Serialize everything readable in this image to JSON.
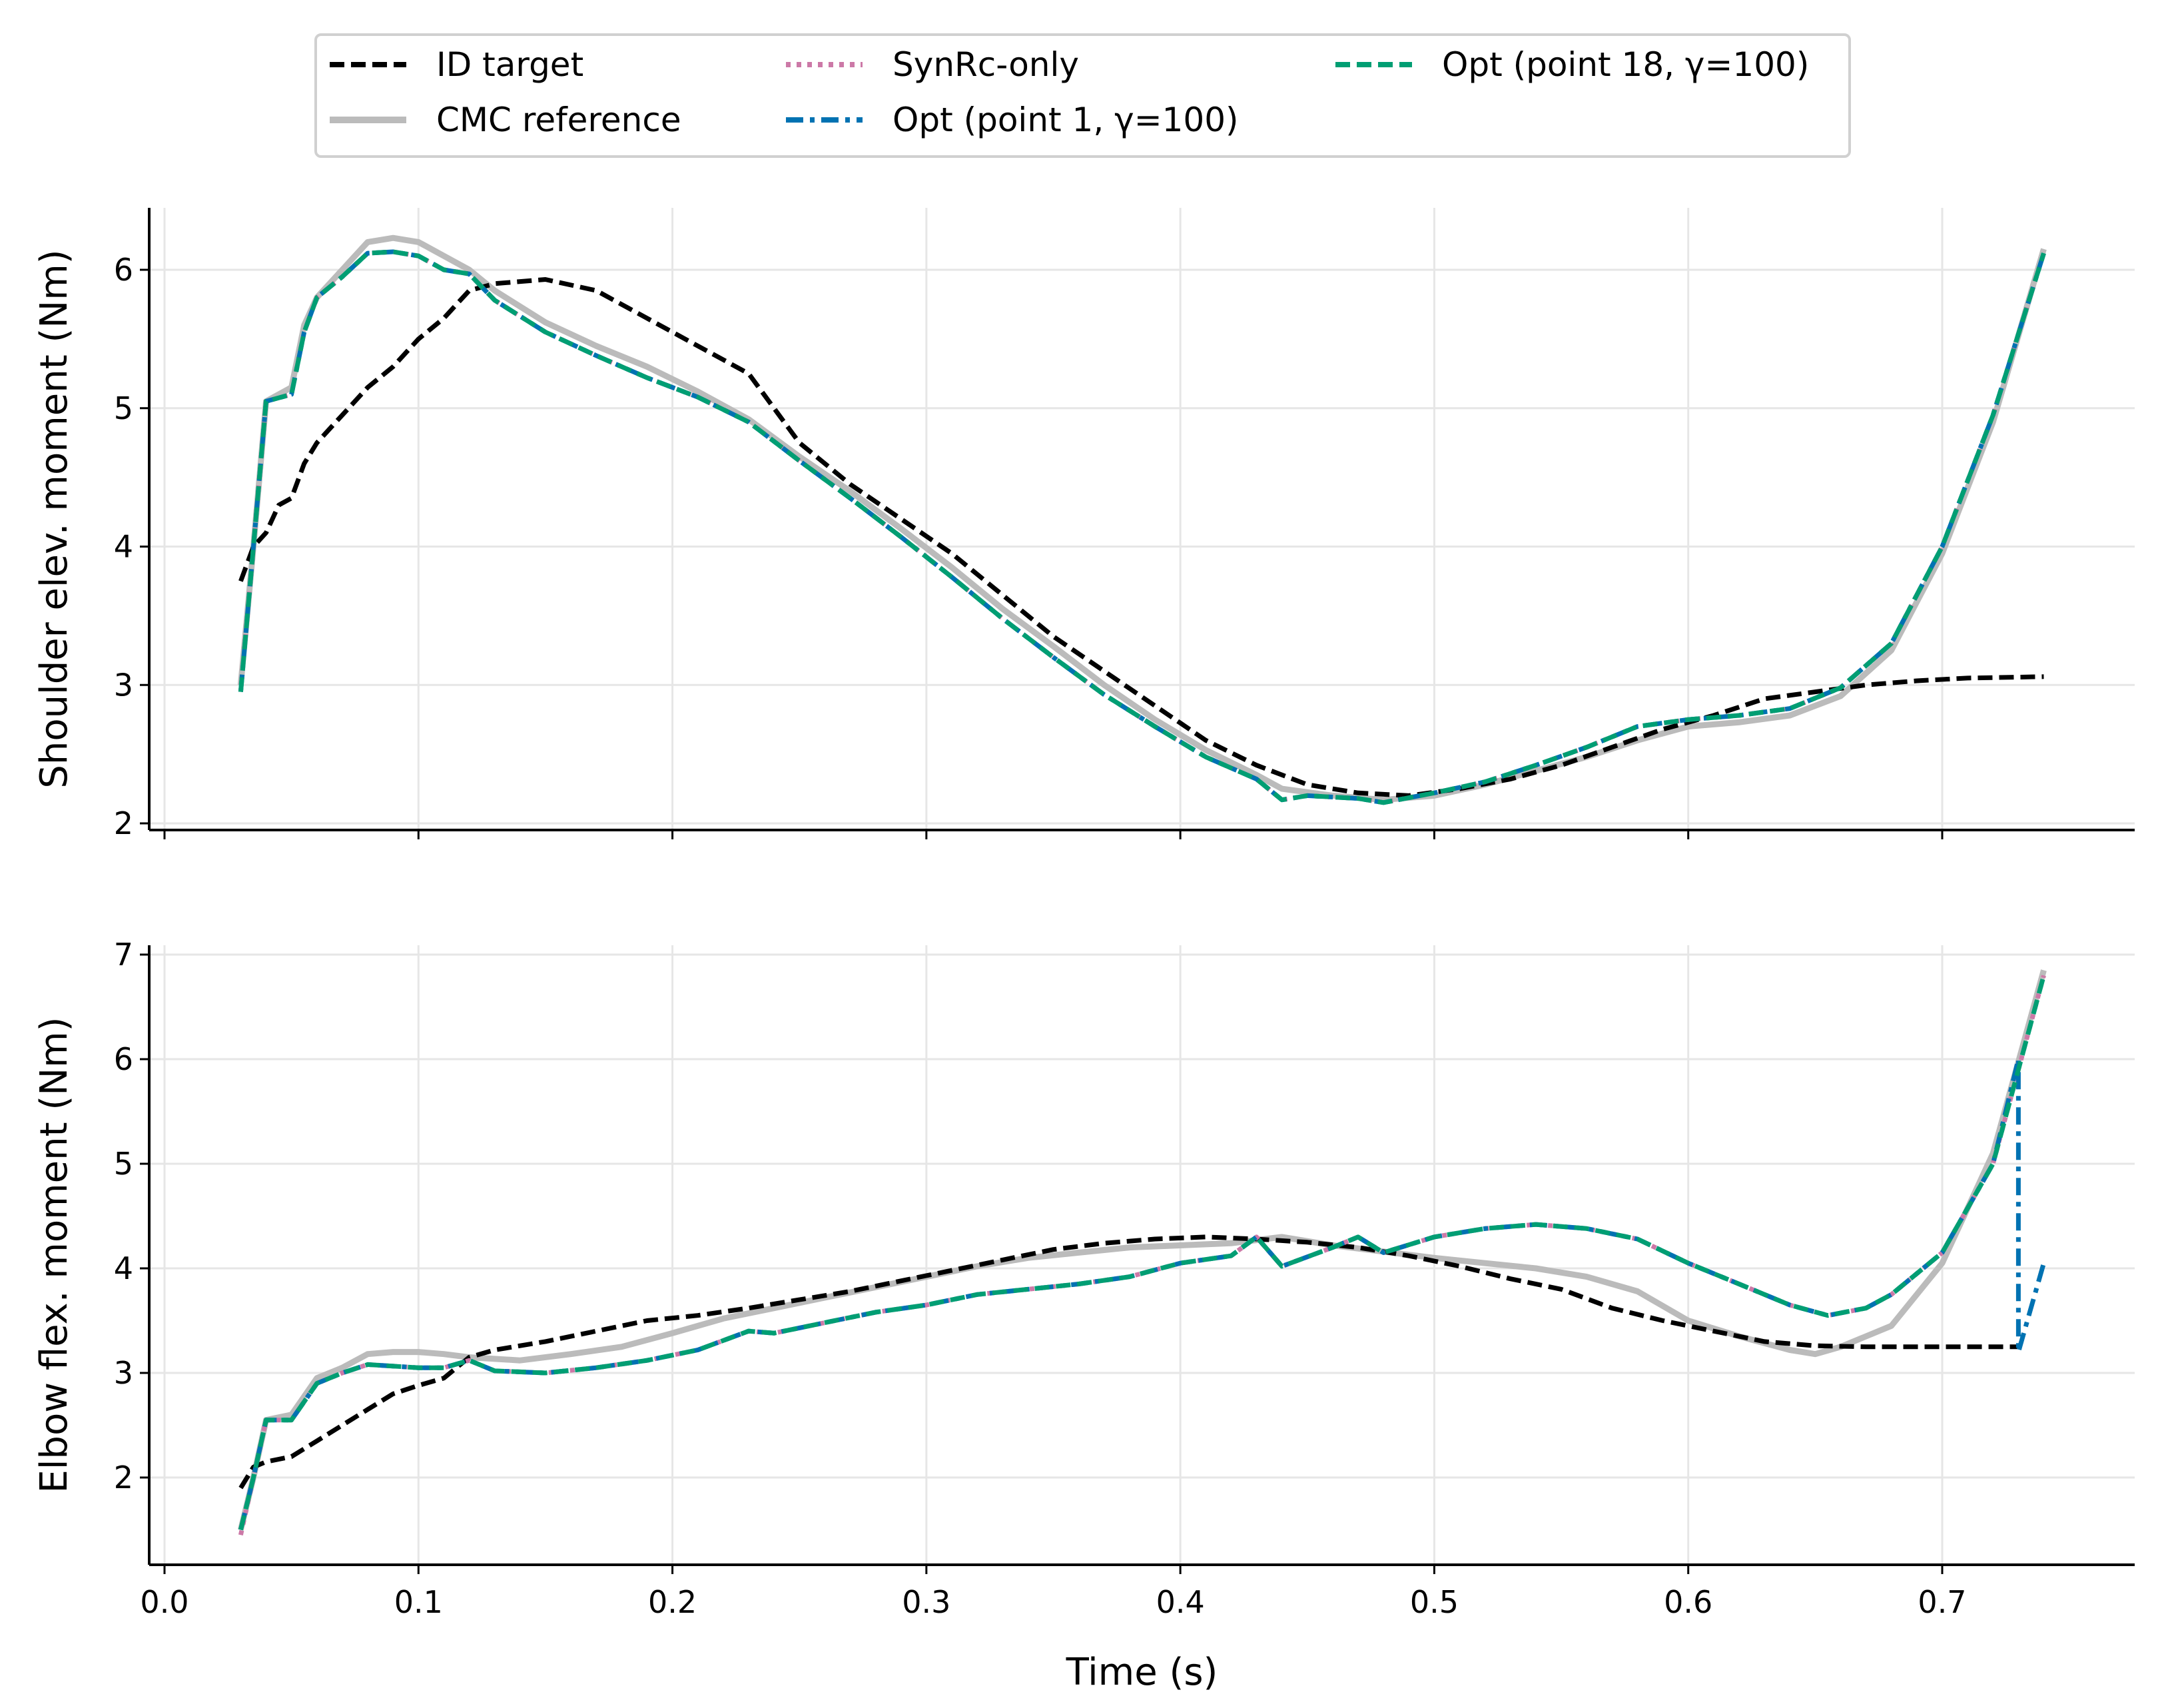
{
  "chart_data": [
    {
      "type": "line",
      "ylabel": "Shoulder elev. moment (Nm)",
      "xlim": [
        -0.005,
        0.775
      ],
      "ylim": [
        1.95,
        6.45
      ],
      "xticks": [
        "0.0",
        "0.1",
        "0.2",
        "0.3",
        "0.4",
        "0.5",
        "0.6",
        "0.7"
      ],
      "xticks_labeled": false,
      "yticks": [
        2,
        3,
        4,
        5,
        6
      ],
      "grid": true,
      "series": [
        {
          "name": "CMC reference",
          "color": "#bbbbbb",
          "style": "solid",
          "x": [
            0.03,
            0.035,
            0.04,
            0.05,
            0.055,
            0.06,
            0.07,
            0.08,
            0.09,
            0.1,
            0.11,
            0.12,
            0.13,
            0.15,
            0.17,
            0.19,
            0.21,
            0.23,
            0.25,
            0.27,
            0.29,
            0.31,
            0.33,
            0.35,
            0.37,
            0.39,
            0.41,
            0.43,
            0.44,
            0.46,
            0.48,
            0.5,
            0.52,
            0.54,
            0.56,
            0.58,
            0.6,
            0.62,
            0.64,
            0.66,
            0.68,
            0.7,
            0.72,
            0.74
          ],
          "y": [
            3.0,
            4.0,
            5.05,
            5.15,
            5.6,
            5.8,
            6.0,
            6.2,
            6.23,
            6.2,
            6.1,
            6.0,
            5.85,
            5.62,
            5.45,
            5.3,
            5.12,
            4.92,
            4.65,
            4.4,
            4.13,
            3.85,
            3.55,
            3.28,
            3.0,
            2.75,
            2.53,
            2.35,
            2.25,
            2.2,
            2.17,
            2.2,
            2.28,
            2.38,
            2.48,
            2.6,
            2.7,
            2.73,
            2.78,
            2.92,
            3.25,
            3.95,
            4.9,
            6.15
          ]
        },
        {
          "name": "ID target",
          "color": "#000000",
          "style": "dashed",
          "x": [
            0.03,
            0.035,
            0.04,
            0.045,
            0.05,
            0.055,
            0.06,
            0.07,
            0.08,
            0.09,
            0.1,
            0.11,
            0.12,
            0.13,
            0.15,
            0.17,
            0.19,
            0.21,
            0.23,
            0.24,
            0.25,
            0.27,
            0.29,
            0.31,
            0.33,
            0.35,
            0.37,
            0.39,
            0.41,
            0.43,
            0.45,
            0.47,
            0.49,
            0.51,
            0.53,
            0.55,
            0.57,
            0.59,
            0.61,
            0.63,
            0.65,
            0.67,
            0.69,
            0.71,
            0.74
          ],
          "y": [
            3.75,
            4.0,
            4.1,
            4.3,
            4.35,
            4.6,
            4.75,
            4.95,
            5.15,
            5.3,
            5.5,
            5.65,
            5.85,
            5.9,
            5.93,
            5.85,
            5.65,
            5.45,
            5.25,
            5.0,
            4.75,
            4.45,
            4.2,
            3.95,
            3.65,
            3.35,
            3.1,
            2.85,
            2.6,
            2.42,
            2.28,
            2.22,
            2.2,
            2.25,
            2.32,
            2.42,
            2.55,
            2.68,
            2.78,
            2.9,
            2.95,
            3.0,
            3.03,
            3.05,
            3.06
          ]
        },
        {
          "name": "SynRc-only",
          "color": "#cc79a7",
          "style": "dotted",
          "x": [
            0.03,
            0.035,
            0.04,
            0.05,
            0.055,
            0.06,
            0.07,
            0.08,
            0.09,
            0.1,
            0.11,
            0.12,
            0.13,
            0.15,
            0.17,
            0.19,
            0.21,
            0.23,
            0.25,
            0.27,
            0.29,
            0.31,
            0.33,
            0.35,
            0.37,
            0.39,
            0.41,
            0.43,
            0.44,
            0.45,
            0.47,
            0.48,
            0.5,
            0.52,
            0.54,
            0.56,
            0.58,
            0.6,
            0.62,
            0.64,
            0.66,
            0.68,
            0.7,
            0.72,
            0.74
          ],
          "y": [
            2.95,
            4.0,
            5.05,
            5.1,
            5.55,
            5.8,
            5.95,
            6.12,
            6.13,
            6.1,
            6.0,
            5.97,
            5.78,
            5.55,
            5.38,
            5.22,
            5.08,
            4.9,
            4.62,
            4.35,
            4.07,
            3.78,
            3.48,
            3.2,
            2.93,
            2.7,
            2.48,
            2.32,
            2.17,
            2.2,
            2.18,
            2.15,
            2.22,
            2.3,
            2.42,
            2.55,
            2.7,
            2.75,
            2.78,
            2.83,
            2.98,
            3.3,
            4.0,
            4.95,
            6.12
          ]
        },
        {
          "name": "Opt (point 1, γ=100)",
          "color": "#0072b2",
          "style": "dashdot",
          "x": [
            0.03,
            0.035,
            0.04,
            0.05,
            0.055,
            0.06,
            0.07,
            0.08,
            0.09,
            0.1,
            0.11,
            0.12,
            0.13,
            0.15,
            0.17,
            0.19,
            0.21,
            0.23,
            0.25,
            0.27,
            0.29,
            0.31,
            0.33,
            0.35,
            0.37,
            0.39,
            0.41,
            0.43,
            0.44,
            0.45,
            0.47,
            0.48,
            0.5,
            0.52,
            0.54,
            0.56,
            0.58,
            0.6,
            0.62,
            0.64,
            0.66,
            0.68,
            0.7,
            0.72,
            0.74
          ],
          "y": [
            2.95,
            4.0,
            5.05,
            5.1,
            5.55,
            5.8,
            5.95,
            6.12,
            6.13,
            6.1,
            6.0,
            5.97,
            5.78,
            5.55,
            5.38,
            5.22,
            5.08,
            4.9,
            4.62,
            4.35,
            4.07,
            3.78,
            3.48,
            3.2,
            2.93,
            2.7,
            2.48,
            2.32,
            2.17,
            2.2,
            2.18,
            2.15,
            2.22,
            2.3,
            2.42,
            2.55,
            2.7,
            2.75,
            2.78,
            2.83,
            2.98,
            3.3,
            4.0,
            4.95,
            6.12
          ]
        },
        {
          "name": "Opt (point 18, γ=100)",
          "color": "#009e73",
          "style": "dashed",
          "x": [
            0.03,
            0.035,
            0.04,
            0.05,
            0.055,
            0.06,
            0.07,
            0.08,
            0.09,
            0.1,
            0.11,
            0.12,
            0.13,
            0.15,
            0.17,
            0.19,
            0.21,
            0.23,
            0.25,
            0.27,
            0.29,
            0.31,
            0.33,
            0.35,
            0.37,
            0.39,
            0.41,
            0.43,
            0.44,
            0.45,
            0.47,
            0.48,
            0.5,
            0.52,
            0.54,
            0.56,
            0.58,
            0.6,
            0.62,
            0.64,
            0.66,
            0.68,
            0.7,
            0.72,
            0.74
          ],
          "y": [
            2.95,
            4.0,
            5.05,
            5.1,
            5.55,
            5.8,
            5.95,
            6.12,
            6.13,
            6.1,
            6.0,
            5.97,
            5.78,
            5.55,
            5.38,
            5.22,
            5.08,
            4.9,
            4.62,
            4.35,
            4.07,
            3.78,
            3.48,
            3.2,
            2.93,
            2.7,
            2.48,
            2.32,
            2.17,
            2.2,
            2.18,
            2.15,
            2.22,
            2.3,
            2.42,
            2.55,
            2.7,
            2.75,
            2.78,
            2.83,
            2.98,
            3.3,
            4.0,
            4.95,
            6.12
          ]
        }
      ]
    },
    {
      "type": "line",
      "xlabel": "Time (s)",
      "ylabel": "Elbow flex. moment (Nm)",
      "xlim": [
        -0.005,
        0.775
      ],
      "ylim": [
        1.12,
        7.1
      ],
      "xticks": [
        "0.0",
        "0.1",
        "0.2",
        "0.3",
        "0.4",
        "0.5",
        "0.6",
        "0.7"
      ],
      "xticks_labeled": true,
      "yticks": [
        2,
        3,
        4,
        5,
        6,
        7
      ],
      "grid": true,
      "series": [
        {
          "name": "CMC reference",
          "color": "#bbbbbb",
          "style": "solid",
          "x": [
            0.03,
            0.035,
            0.04,
            0.05,
            0.06,
            0.07,
            0.08,
            0.09,
            0.1,
            0.11,
            0.12,
            0.14,
            0.16,
            0.18,
            0.2,
            0.22,
            0.24,
            0.26,
            0.28,
            0.3,
            0.32,
            0.34,
            0.36,
            0.38,
            0.4,
            0.42,
            0.44,
            0.46,
            0.48,
            0.5,
            0.52,
            0.54,
            0.56,
            0.58,
            0.6,
            0.62,
            0.64,
            0.65,
            0.66,
            0.68,
            0.7,
            0.72,
            0.74
          ],
          "y": [
            1.5,
            2.0,
            2.55,
            2.6,
            2.95,
            3.05,
            3.18,
            3.2,
            3.2,
            3.18,
            3.15,
            3.12,
            3.18,
            3.25,
            3.38,
            3.52,
            3.62,
            3.72,
            3.82,
            3.92,
            4.02,
            4.1,
            4.15,
            4.2,
            4.22,
            4.24,
            4.3,
            4.22,
            4.16,
            4.1,
            4.05,
            4.0,
            3.92,
            3.78,
            3.5,
            3.35,
            3.22,
            3.18,
            3.25,
            3.45,
            4.05,
            5.1,
            6.85
          ]
        },
        {
          "name": "ID target",
          "color": "#000000",
          "style": "dashed",
          "x": [
            0.03,
            0.035,
            0.04,
            0.05,
            0.06,
            0.07,
            0.08,
            0.09,
            0.1,
            0.11,
            0.12,
            0.13,
            0.15,
            0.17,
            0.19,
            0.21,
            0.23,
            0.25,
            0.27,
            0.29,
            0.31,
            0.33,
            0.35,
            0.37,
            0.39,
            0.41,
            0.43,
            0.45,
            0.47,
            0.49,
            0.51,
            0.53,
            0.55,
            0.57,
            0.59,
            0.61,
            0.63,
            0.65,
            0.67,
            0.7,
            0.73
          ],
          "y": [
            1.9,
            2.1,
            2.15,
            2.2,
            2.35,
            2.5,
            2.65,
            2.8,
            2.88,
            2.95,
            3.15,
            3.22,
            3.3,
            3.4,
            3.5,
            3.55,
            3.62,
            3.7,
            3.78,
            3.88,
            3.98,
            4.08,
            4.18,
            4.24,
            4.28,
            4.3,
            4.28,
            4.25,
            4.2,
            4.12,
            4.02,
            3.9,
            3.8,
            3.62,
            3.5,
            3.4,
            3.3,
            3.26,
            3.25,
            3.25,
            3.25
          ]
        },
        {
          "name": "SynRc-only",
          "color": "#cc79a7",
          "style": "dotted",
          "x": [
            0.03,
            0.035,
            0.04,
            0.05,
            0.06,
            0.07,
            0.08,
            0.1,
            0.11,
            0.12,
            0.13,
            0.15,
            0.17,
            0.19,
            0.21,
            0.23,
            0.24,
            0.26,
            0.28,
            0.3,
            0.32,
            0.34,
            0.36,
            0.38,
            0.4,
            0.42,
            0.43,
            0.44,
            0.46,
            0.47,
            0.48,
            0.5,
            0.52,
            0.54,
            0.56,
            0.58,
            0.6,
            0.62,
            0.64,
            0.655,
            0.67,
            0.68,
            0.7,
            0.72,
            0.74
          ],
          "y": [
            1.45,
            2.0,
            2.55,
            2.55,
            2.9,
            3.0,
            3.08,
            3.05,
            3.05,
            3.12,
            3.02,
            3.0,
            3.05,
            3.12,
            3.22,
            3.4,
            3.38,
            3.48,
            3.58,
            3.65,
            3.75,
            3.8,
            3.85,
            3.92,
            4.05,
            4.12,
            4.3,
            4.02,
            4.2,
            4.3,
            4.15,
            4.3,
            4.38,
            4.42,
            4.38,
            4.28,
            4.05,
            3.85,
            3.65,
            3.55,
            3.62,
            3.75,
            4.15,
            5.0,
            6.8
          ]
        },
        {
          "name": "Opt (point 1, γ=100)",
          "color": "#0072b2",
          "style": "dashdot",
          "x": [
            0.03,
            0.035,
            0.04,
            0.05,
            0.06,
            0.07,
            0.08,
            0.1,
            0.11,
            0.12,
            0.13,
            0.15,
            0.17,
            0.19,
            0.21,
            0.23,
            0.24,
            0.26,
            0.28,
            0.3,
            0.32,
            0.34,
            0.36,
            0.38,
            0.4,
            0.42,
            0.43,
            0.44,
            0.46,
            0.47,
            0.48,
            0.5,
            0.52,
            0.54,
            0.56,
            0.58,
            0.6,
            0.62,
            0.64,
            0.655,
            0.67,
            0.68,
            0.7,
            0.72,
            0.73,
            0.73,
            0.74
          ],
          "y": [
            1.5,
            2.0,
            2.55,
            2.55,
            2.9,
            3.0,
            3.08,
            3.05,
            3.05,
            3.12,
            3.02,
            3.0,
            3.05,
            3.12,
            3.22,
            3.4,
            3.38,
            3.48,
            3.58,
            3.65,
            3.75,
            3.8,
            3.85,
            3.92,
            4.05,
            4.12,
            4.3,
            4.02,
            4.2,
            4.3,
            4.15,
            4.3,
            4.38,
            4.42,
            4.38,
            4.28,
            4.05,
            3.85,
            3.65,
            3.55,
            3.62,
            3.75,
            4.15,
            5.0,
            6.0,
            3.2,
            4.05
          ]
        },
        {
          "name": "Opt (point 18, γ=100)",
          "color": "#009e73",
          "style": "dashed",
          "x": [
            0.03,
            0.035,
            0.04,
            0.05,
            0.06,
            0.07,
            0.08,
            0.1,
            0.11,
            0.12,
            0.13,
            0.15,
            0.17,
            0.19,
            0.21,
            0.23,
            0.24,
            0.26,
            0.28,
            0.3,
            0.32,
            0.34,
            0.36,
            0.38,
            0.4,
            0.42,
            0.43,
            0.44,
            0.46,
            0.47,
            0.48,
            0.5,
            0.52,
            0.54,
            0.56,
            0.58,
            0.6,
            0.62,
            0.64,
            0.655,
            0.67,
            0.68,
            0.7,
            0.72,
            0.74
          ],
          "y": [
            1.5,
            2.0,
            2.55,
            2.55,
            2.9,
            3.0,
            3.08,
            3.05,
            3.05,
            3.12,
            3.02,
            3.0,
            3.05,
            3.12,
            3.22,
            3.4,
            3.38,
            3.48,
            3.58,
            3.65,
            3.75,
            3.8,
            3.85,
            3.92,
            4.05,
            4.12,
            4.3,
            4.02,
            4.2,
            4.3,
            4.15,
            4.3,
            4.38,
            4.42,
            4.38,
            4.28,
            4.05,
            3.85,
            3.65,
            3.55,
            3.62,
            3.75,
            4.15,
            5.0,
            6.8
          ]
        }
      ]
    }
  ],
  "legend": {
    "placement": "top-center",
    "entries": [
      {
        "label": "ID target",
        "color": "#000000",
        "style": "dashed"
      },
      {
        "label": "CMC reference",
        "color": "#bbbbbb",
        "style": "solid"
      },
      {
        "label": "SynRc-only",
        "color": "#cc79a7",
        "style": "dotted"
      },
      {
        "label": "Opt (point 1, γ=100)",
        "color": "#0072b2",
        "style": "dashdot"
      },
      {
        "label": "Opt (point 18, γ=100)",
        "color": "#009e73",
        "style": "dashed"
      }
    ]
  }
}
